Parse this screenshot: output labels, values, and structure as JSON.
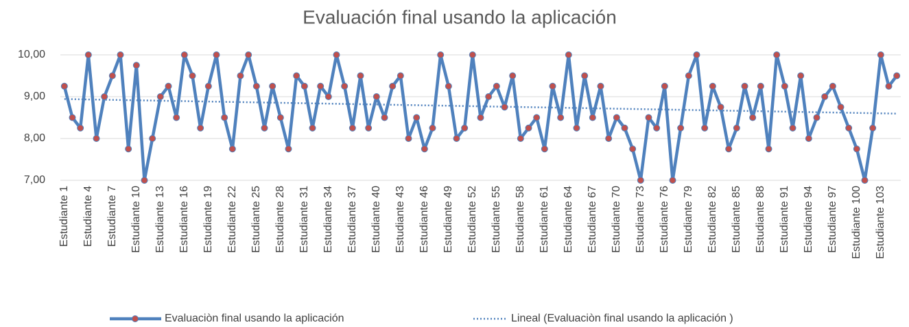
{
  "chart_data": {
    "type": "line",
    "title": "Evaluación final usando la aplicación",
    "categories": [
      "Estudiante 1",
      null,
      null,
      "Estudiante 4",
      null,
      null,
      "Estudiante 7",
      null,
      null,
      "Estudiante 10",
      null,
      null,
      "Estudiante 13",
      null,
      null,
      "Estudiante 16",
      null,
      null,
      "Estudiante 19",
      null,
      null,
      "Estudiante 22",
      null,
      null,
      "Estudiante 25",
      null,
      null,
      "Estudiante 28",
      null,
      null,
      "Estudiante 31",
      null,
      null,
      "Estudiante 34",
      null,
      null,
      "Estudiante 37",
      null,
      null,
      "Estudiante 40",
      null,
      null,
      "Estudiante 43",
      null,
      null,
      "Estudiante 46",
      null,
      null,
      "Estudiante 49",
      null,
      null,
      "Estudiante 52",
      null,
      null,
      "Estudiante 55",
      null,
      null,
      "Estudiante 58",
      null,
      null,
      "Estudiante 61",
      null,
      null,
      "Estudiante 64",
      null,
      null,
      "Estudiante 67",
      null,
      null,
      "Estudiante 70",
      null,
      null,
      "Estudiante 73",
      null,
      null,
      "Estudiante 76",
      null,
      null,
      "Estudiante 79",
      null,
      null,
      "Estudiante 82",
      null,
      null,
      "Estudiante 85",
      null,
      null,
      "Estudiante 88",
      null,
      null,
      "Estudiante 91",
      null,
      null,
      "Estudiante 94",
      null,
      null,
      "Estudiante 97",
      null,
      null,
      "Estudiante 100",
      null,
      null,
      "Estudiante 103",
      null,
      null
    ],
    "series": [
      {
        "name": "Evaluaciòn final usando la aplicación",
        "color": "#4f81bd",
        "marker_color": "#c0504d",
        "values": [
          9.25,
          8.5,
          8.25,
          10,
          8,
          9,
          9.5,
          10,
          7.75,
          9.75,
          7,
          8,
          9,
          9.25,
          8.5,
          10,
          9.5,
          8.25,
          9.25,
          10,
          8.5,
          7.75,
          9.5,
          10,
          9.25,
          8.25,
          9.25,
          8.5,
          7.75,
          9.5,
          9.25,
          8.25,
          9.25,
          9,
          10,
          9.25,
          8.25,
          9.5,
          8.25,
          9,
          8.5,
          9.25,
          9.5,
          8,
          8.5,
          7.75,
          8.25,
          10,
          9.25,
          8,
          8.25,
          10,
          8.5,
          9,
          9.25,
          8.75,
          9.5,
          8,
          8.25,
          8.5,
          7.75,
          9.25,
          8.5,
          10,
          8.25,
          9.5,
          8.5,
          9.25,
          8,
          8.5,
          8.25,
          7.75,
          7,
          8.5,
          8.25,
          9.25,
          7,
          8.25,
          9.5,
          10,
          8.25,
          9.25,
          8.75,
          7.75,
          8.25,
          9.25,
          8.5,
          9.25,
          7.75,
          10,
          9.25,
          8.25,
          9.5,
          8,
          8.5,
          9,
          9.25,
          8.75,
          8.25,
          7.75,
          7,
          8.25,
          10,
          9.25,
          9.5
        ],
        "trendline": {
          "name": "Lineal (Evaluaciòn final usando la aplicación )",
          "type": "linear"
        }
      }
    ],
    "ylim": [
      7,
      10
    ],
    "yticks": [
      {
        "value": 7,
        "label": "7,00"
      },
      {
        "value": 8,
        "label": "8,00"
      },
      {
        "value": 9,
        "label": "9,00"
      },
      {
        "value": 10,
        "label": "10,00"
      }
    ],
    "grid": true,
    "legend": "bottom"
  }
}
